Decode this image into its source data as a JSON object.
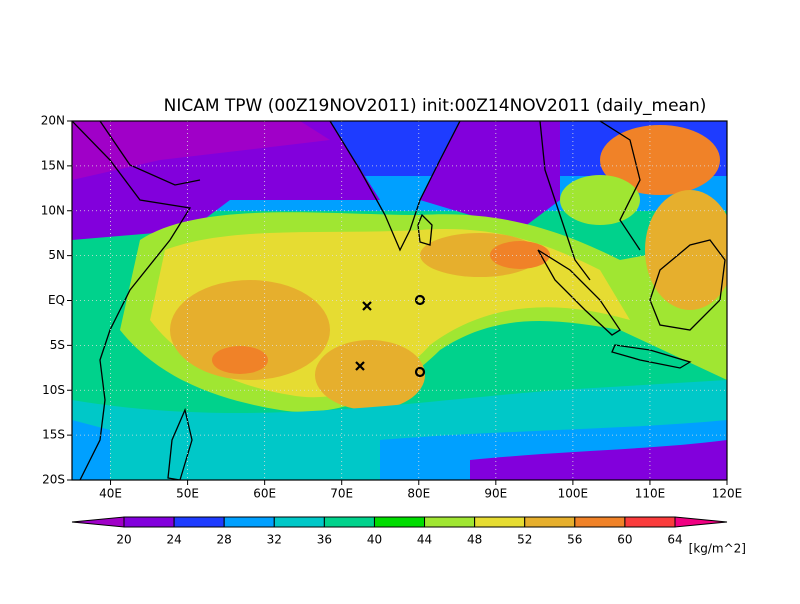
{
  "chart_data": {
    "type": "contour-map",
    "title": "NICAM TPW (00Z19NOV2011) init:00Z14NOV2011 (daily_mean)",
    "xlim": [
      35,
      120
    ],
    "ylim": [
      -20,
      20
    ],
    "xticks": [
      {
        "value": 40,
        "label": "40E"
      },
      {
        "value": 50,
        "label": "50E"
      },
      {
        "value": 60,
        "label": "60E"
      },
      {
        "value": 70,
        "label": "70E"
      },
      {
        "value": 80,
        "label": "80E"
      },
      {
        "value": 90,
        "label": "90E"
      },
      {
        "value": 100,
        "label": "100E"
      },
      {
        "value": 110,
        "label": "110E"
      },
      {
        "value": 120,
        "label": "120E"
      }
    ],
    "yticks": [
      {
        "value": -20,
        "label": "20S"
      },
      {
        "value": -15,
        "label": "15S"
      },
      {
        "value": -10,
        "label": "10S"
      },
      {
        "value": -5,
        "label": "5S"
      },
      {
        "value": 0,
        "label": "EQ"
      },
      {
        "value": 5,
        "label": "5N"
      },
      {
        "value": 10,
        "label": "10N"
      },
      {
        "value": 15,
        "label": "15N"
      },
      {
        "value": 20,
        "label": "20N"
      }
    ],
    "grid": true,
    "colorbar": {
      "levels": [
        20,
        24,
        28,
        32,
        36,
        40,
        44,
        48,
        52,
        56,
        60,
        64
      ],
      "colors": [
        "#a000c8",
        "#8200dc",
        "#1e3cff",
        "#00a0ff",
        "#00c8c8",
        "#00d28c",
        "#00dc00",
        "#a0e632",
        "#e6dc32",
        "#e6af2d",
        "#f08228",
        "#fa3c3c",
        "#f00082"
      ],
      "unit": "[kg/m^2]"
    }
  }
}
